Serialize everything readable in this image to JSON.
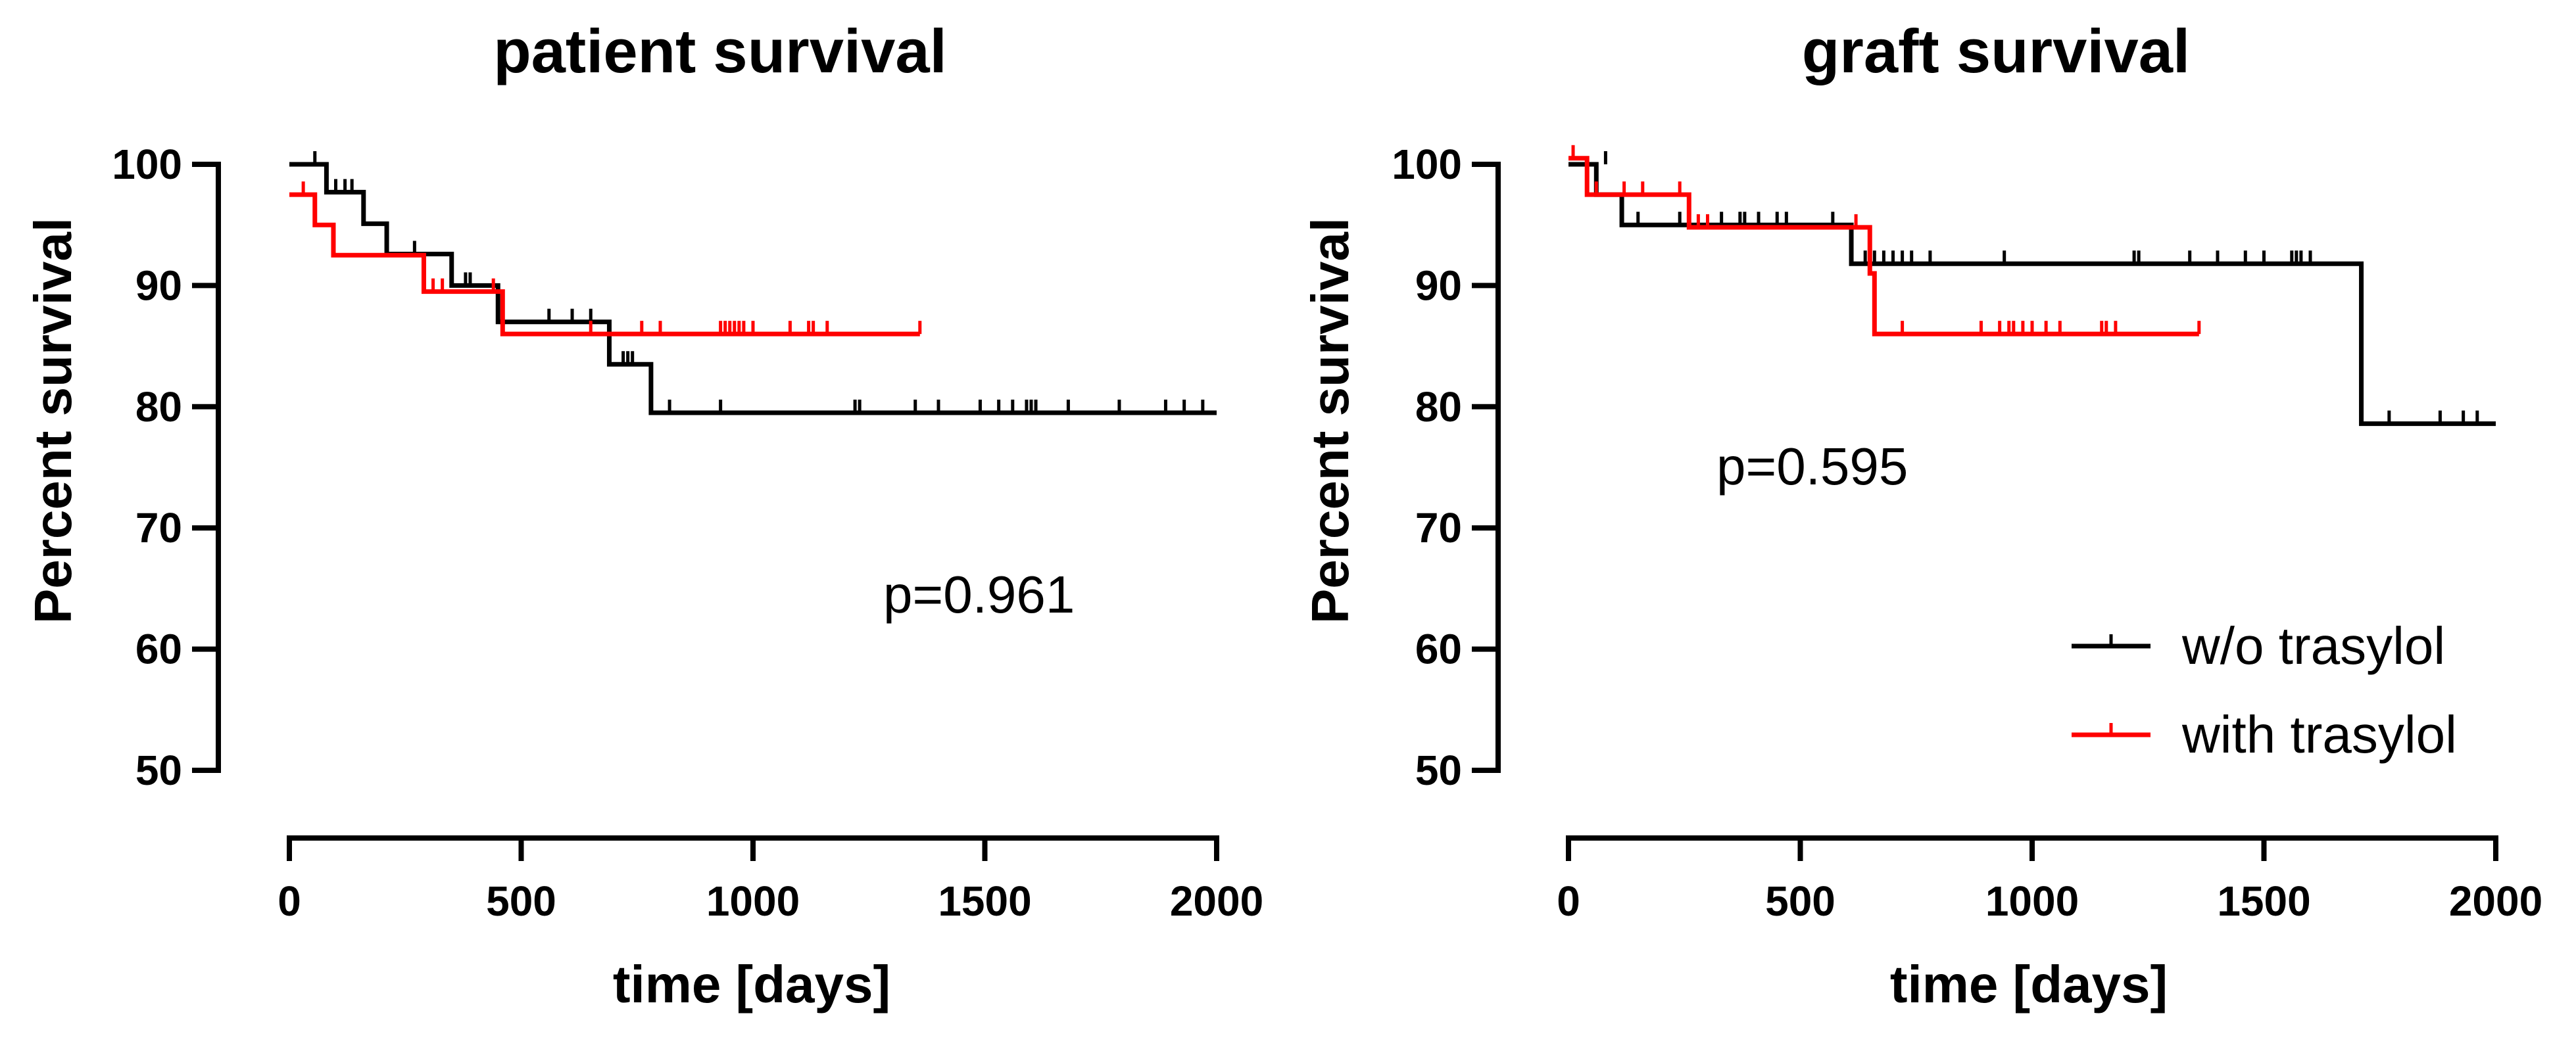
{
  "chart_data": [
    {
      "type": "line",
      "subtype": "kaplan-meier",
      "title": "patient survival",
      "xlabel": "time [days]",
      "ylabel": "Percent survival",
      "xlim": [
        0,
        2000
      ],
      "ylim": [
        50,
        100
      ],
      "xticks": [
        0,
        500,
        1000,
        1500,
        2000
      ],
      "yticks": [
        50,
        60,
        70,
        80,
        90,
        100
      ],
      "annotation": "p=0.961",
      "series": [
        {
          "name": "w/o trasylol",
          "color": "#000000",
          "steps": [
            [
              0,
              100
            ],
            [
              80,
              97.7
            ],
            [
              160,
              95.1
            ],
            [
              210,
              92.6
            ],
            [
              350,
              90.0
            ],
            [
              450,
              87.0
            ],
            [
              690,
              83.5
            ],
            [
              780,
              79.5
            ],
            [
              2000,
              79.5
            ]
          ],
          "censored": [
            [
              55,
              100
            ],
            [
              100,
              97.7
            ],
            [
              120,
              97.7
            ],
            [
              135,
              97.7
            ],
            [
              270,
              92.6
            ],
            [
              380,
              90.0
            ],
            [
              390,
              90.0
            ],
            [
              560,
              87.0
            ],
            [
              610,
              87.0
            ],
            [
              650,
              87.0
            ],
            [
              720,
              83.5
            ],
            [
              730,
              83.5
            ],
            [
              740,
              83.5
            ],
            [
              820,
              79.5
            ],
            [
              930,
              79.5
            ],
            [
              1220,
              79.5
            ],
            [
              1230,
              79.5
            ],
            [
              1350,
              79.5
            ],
            [
              1400,
              79.5
            ],
            [
              1490,
              79.5
            ],
            [
              1530,
              79.5
            ],
            [
              1560,
              79.5
            ],
            [
              1590,
              79.5
            ],
            [
              1600,
              79.5
            ],
            [
              1610,
              79.5
            ],
            [
              1680,
              79.5
            ],
            [
              1790,
              79.5
            ],
            [
              1890,
              79.5
            ],
            [
              1930,
              79.5
            ],
            [
              1970,
              79.5
            ]
          ]
        },
        {
          "name": "with trasylol",
          "color": "#ff0000",
          "steps": [
            [
              0,
              97.5
            ],
            [
              55,
              95.0
            ],
            [
              95,
              92.5
            ],
            [
              290,
              89.5
            ],
            [
              460,
              86.0
            ],
            [
              1360,
              86.0
            ]
          ],
          "censored": [
            [
              30,
              97.5
            ],
            [
              310,
              89.5
            ],
            [
              330,
              89.5
            ],
            [
              440,
              89.5
            ],
            [
              650,
              86.0
            ],
            [
              760,
              86.0
            ],
            [
              800,
              86.0
            ],
            [
              930,
              86.0
            ],
            [
              940,
              86.0
            ],
            [
              950,
              86.0
            ],
            [
              960,
              86.0
            ],
            [
              970,
              86.0
            ],
            [
              980,
              86.0
            ],
            [
              1000,
              86.0
            ],
            [
              1080,
              86.0
            ],
            [
              1120,
              86.0
            ],
            [
              1130,
              86.0
            ],
            [
              1160,
              86.0
            ],
            [
              1360,
              86.0
            ]
          ]
        }
      ]
    },
    {
      "type": "line",
      "subtype": "kaplan-meier",
      "title": "graft survival",
      "xlabel": "time [days]",
      "ylabel": "Percent survival",
      "xlim": [
        0,
        2000
      ],
      "ylim": [
        50,
        100
      ],
      "xticks": [
        0,
        500,
        1000,
        1500,
        2000
      ],
      "yticks": [
        50,
        60,
        70,
        80,
        90,
        100
      ],
      "annotation": "p=0.595",
      "legend": {
        "placement": "bottom-right"
      },
      "series": [
        {
          "name": "w/o trasylol",
          "color": "#000000",
          "steps": [
            [
              0,
              100
            ],
            [
              60,
              97.5
            ],
            [
              115,
              95.0
            ],
            [
              610,
              91.8
            ],
            [
              1710,
              78.6
            ],
            [
              2000,
              78.6
            ]
          ],
          "censored": [
            [
              80,
              100
            ],
            [
              150,
              95.0
            ],
            [
              240,
              95.0
            ],
            [
              330,
              95.0
            ],
            [
              370,
              95.0
            ],
            [
              380,
              95.0
            ],
            [
              410,
              95.0
            ],
            [
              450,
              95.0
            ],
            [
              470,
              95.0
            ],
            [
              570,
              95.0
            ],
            [
              640,
              91.8
            ],
            [
              660,
              91.8
            ],
            [
              680,
              91.8
            ],
            [
              700,
              91.8
            ],
            [
              720,
              91.8
            ],
            [
              740,
              91.8
            ],
            [
              780,
              91.8
            ],
            [
              940,
              91.8
            ],
            [
              1220,
              91.8
            ],
            [
              1230,
              91.8
            ],
            [
              1340,
              91.8
            ],
            [
              1400,
              91.8
            ],
            [
              1460,
              91.8
            ],
            [
              1500,
              91.8
            ],
            [
              1560,
              91.8
            ],
            [
              1570,
              91.8
            ],
            [
              1580,
              91.8
            ],
            [
              1600,
              91.8
            ],
            [
              1770,
              78.6
            ],
            [
              1880,
              78.6
            ],
            [
              1930,
              78.6
            ],
            [
              1960,
              78.6
            ]
          ]
        },
        {
          "name": "with trasylol",
          "color": "#ff0000",
          "steps": [
            [
              0,
              100.5
            ],
            [
              40,
              97.5
            ],
            [
              260,
              94.8
            ],
            [
              650,
              91.0
            ],
            [
              660,
              86.0
            ],
            [
              1360,
              86.0
            ]
          ],
          "censored": [
            [
              10,
              100.5
            ],
            [
              60,
              97.5
            ],
            [
              120,
              97.5
            ],
            [
              160,
              97.5
            ],
            [
              240,
              97.5
            ],
            [
              280,
              94.8
            ],
            [
              300,
              94.8
            ],
            [
              620,
              94.8
            ],
            [
              720,
              86.0
            ],
            [
              890,
              86.0
            ],
            [
              930,
              86.0
            ],
            [
              950,
              86.0
            ],
            [
              960,
              86.0
            ],
            [
              980,
              86.0
            ],
            [
              1000,
              86.0
            ],
            [
              1030,
              86.0
            ],
            [
              1060,
              86.0
            ],
            [
              1150,
              86.0
            ],
            [
              1160,
              86.0
            ],
            [
              1180,
              86.0
            ],
            [
              1360,
              86.0
            ]
          ]
        }
      ]
    }
  ],
  "legend": {
    "items": [
      {
        "label": "w/o trasylol",
        "color": "#000000"
      },
      {
        "label": "with trasylol",
        "color": "#ff0000"
      }
    ]
  }
}
